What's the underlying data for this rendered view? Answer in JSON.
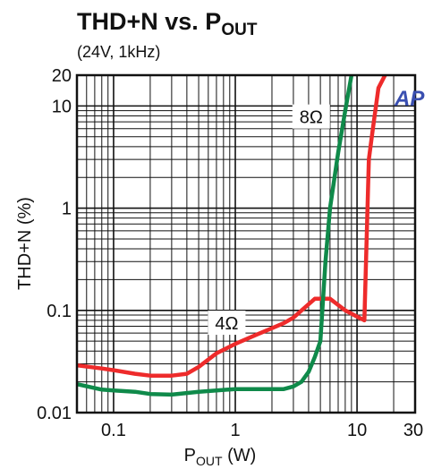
{
  "chart_data": {
    "type": "line",
    "title": {
      "main": "THD+N vs. P",
      "sub": "OUT"
    },
    "subtitle": "(24V, 1kHz)",
    "xlabel": {
      "main": "P",
      "sub": "OUT",
      "unit": " (W)"
    },
    "ylabel": "THD+N (%)",
    "x_scale": "log",
    "y_scale": "log",
    "xlim": [
      0.05,
      30
    ],
    "ylim": [
      0.01,
      20
    ],
    "grid": true,
    "x_ticks": [
      {
        "value": 0.1,
        "label": "0.1"
      },
      {
        "value": 1,
        "label": "1"
      },
      {
        "value": 10,
        "label": "10"
      },
      {
        "value": 30,
        "label": "30"
      }
    ],
    "y_ticks": [
      {
        "value": 0.01,
        "label": "0.01"
      },
      {
        "value": 0.1,
        "label": "0.1"
      },
      {
        "value": 1,
        "label": "1"
      },
      {
        "value": 10,
        "label": "10"
      },
      {
        "value": 20,
        "label": "20"
      }
    ],
    "series": [
      {
        "name": "4Ω",
        "color": "#ee2b2b",
        "label_at": {
          "x": 0.85,
          "y": 0.075
        },
        "points": [
          [
            0.05,
            0.029
          ],
          [
            0.08,
            0.027
          ],
          [
            0.1,
            0.026
          ],
          [
            0.15,
            0.024
          ],
          [
            0.2,
            0.023
          ],
          [
            0.3,
            0.023
          ],
          [
            0.4,
            0.024
          ],
          [
            0.5,
            0.028
          ],
          [
            0.7,
            0.038
          ],
          [
            1.0,
            0.047
          ],
          [
            1.5,
            0.058
          ],
          [
            2.0,
            0.067
          ],
          [
            2.5,
            0.075
          ],
          [
            3.0,
            0.085
          ],
          [
            4.0,
            0.115
          ],
          [
            4.5,
            0.13
          ],
          [
            5.0,
            0.13
          ],
          [
            6.0,
            0.13
          ],
          [
            8.0,
            0.1
          ],
          [
            10.0,
            0.087
          ],
          [
            11.5,
            0.08
          ],
          [
            12.5,
            3
          ],
          [
            13.5,
            6
          ],
          [
            15.0,
            15
          ],
          [
            17.0,
            20
          ]
        ]
      },
      {
        "name": "8Ω",
        "color": "#0f8a4a",
        "label_at": {
          "x": 4.2,
          "y": 7.8
        },
        "points": [
          [
            0.05,
            0.019
          ],
          [
            0.08,
            0.0168
          ],
          [
            0.1,
            0.0165
          ],
          [
            0.15,
            0.016
          ],
          [
            0.2,
            0.0152
          ],
          [
            0.3,
            0.015
          ],
          [
            0.5,
            0.016
          ],
          [
            0.7,
            0.0165
          ],
          [
            1.0,
            0.017
          ],
          [
            1.5,
            0.017
          ],
          [
            2.0,
            0.017
          ],
          [
            2.5,
            0.017
          ],
          [
            3.0,
            0.018
          ],
          [
            3.5,
            0.02
          ],
          [
            4.0,
            0.025
          ],
          [
            4.5,
            0.035
          ],
          [
            5.0,
            0.05
          ],
          [
            5.5,
            0.3
          ],
          [
            6.0,
            1.0
          ],
          [
            7.0,
            3.5
          ],
          [
            8.0,
            9
          ],
          [
            9.0,
            20
          ]
        ]
      }
    ],
    "logo": {
      "text": "AP",
      "color": "#3a4fb0"
    }
  }
}
